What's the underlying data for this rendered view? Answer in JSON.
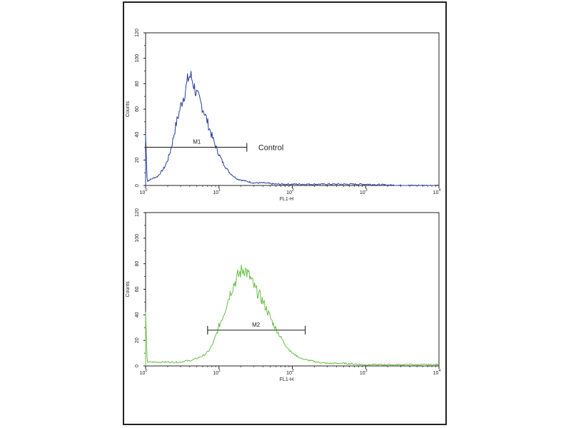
{
  "chart_data": [
    {
      "type": "line",
      "xscale": "log",
      "xlim": [
        1,
        10000
      ],
      "ylim": [
        0,
        120
      ],
      "xticks": [
        {
          "base": "10",
          "exp": "0"
        },
        {
          "base": "10",
          "exp": "1"
        },
        {
          "base": "10",
          "exp": "2"
        },
        {
          "base": "10",
          "exp": "3"
        },
        {
          "base": "10",
          "exp": "4"
        }
      ],
      "yticks": [
        "0",
        "20",
        "40",
        "60",
        "80",
        "100",
        "120"
      ],
      "xlabel": "FL1-H",
      "ylabel": "Counts",
      "color": "#2a3f9e",
      "marker": {
        "label": "M1",
        "x_start": 1,
        "x_end": 24,
        "y": 30
      },
      "annotation": "Control",
      "histogram": [
        [
          1.0,
          40
        ],
        [
          1.05,
          3
        ],
        [
          1.1,
          4
        ],
        [
          1.2,
          5
        ],
        [
          1.3,
          6
        ],
        [
          1.45,
          7
        ],
        [
          1.6,
          10
        ],
        [
          1.8,
          14
        ],
        [
          2.0,
          20
        ],
        [
          2.2,
          28
        ],
        [
          2.4,
          38
        ],
        [
          2.6,
          48
        ],
        [
          2.8,
          55
        ],
        [
          3.0,
          62
        ],
        [
          3.2,
          68
        ],
        [
          3.4,
          72
        ],
        [
          3.6,
          78
        ],
        [
          3.8,
          84
        ],
        [
          4.0,
          86
        ],
        [
          4.2,
          85
        ],
        [
          4.5,
          80
        ],
        [
          4.8,
          74
        ],
        [
          5.1,
          70
        ],
        [
          5.5,
          66
        ],
        [
          5.9,
          62
        ],
        [
          6.3,
          58
        ],
        [
          6.8,
          52
        ],
        [
          7.3,
          46
        ],
        [
          7.9,
          40
        ],
        [
          8.6,
          34
        ],
        [
          9.4,
          28
        ],
        [
          10.3,
          23
        ],
        [
          11.3,
          18
        ],
        [
          12.5,
          14
        ],
        [
          14,
          10
        ],
        [
          16,
          7
        ],
        [
          18,
          5
        ],
        [
          21,
          4
        ],
        [
          25,
          3
        ],
        [
          30,
          2
        ],
        [
          40,
          2
        ],
        [
          60,
          1
        ],
        [
          100,
          1
        ],
        [
          200,
          1
        ],
        [
          500,
          1
        ],
        [
          1000,
          1
        ],
        [
          3000,
          0
        ],
        [
          10000,
          0
        ]
      ]
    },
    {
      "type": "line",
      "xscale": "log",
      "xlim": [
        1,
        10000
      ],
      "ylim": [
        0,
        120
      ],
      "xticks": [
        {
          "base": "10",
          "exp": "0"
        },
        {
          "base": "10",
          "exp": "1"
        },
        {
          "base": "10",
          "exp": "2"
        },
        {
          "base": "10",
          "exp": "3"
        },
        {
          "base": "10",
          "exp": "4"
        }
      ],
      "yticks": [
        "0",
        "20",
        "40",
        "60",
        "80",
        "100",
        "120"
      ],
      "xlabel": "FL1-H",
      "ylabel": "Counts",
      "color": "#6cc04a",
      "marker": {
        "label": "M2",
        "x_start": 7,
        "x_end": 150,
        "y": 28
      },
      "annotation": "",
      "histogram": [
        [
          1.0,
          42
        ],
        [
          1.05,
          3
        ],
        [
          1.2,
          3
        ],
        [
          1.5,
          3
        ],
        [
          2.0,
          3
        ],
        [
          2.5,
          3
        ],
        [
          3.0,
          3
        ],
        [
          3.5,
          4
        ],
        [
          4.0,
          4
        ],
        [
          4.5,
          5
        ],
        [
          5.0,
          6
        ],
        [
          5.5,
          7
        ],
        [
          6.0,
          8
        ],
        [
          6.5,
          9
        ],
        [
          7.0,
          11
        ],
        [
          7.5,
          13
        ],
        [
          8.0,
          16
        ],
        [
          8.5,
          19
        ],
        [
          9.0,
          23
        ],
        [
          9.5,
          27
        ],
        [
          10,
          31
        ],
        [
          11,
          37
        ],
        [
          12,
          43
        ],
        [
          13,
          50
        ],
        [
          14,
          56
        ],
        [
          15,
          60
        ],
        [
          16,
          64
        ],
        [
          17,
          67
        ],
        [
          18,
          70
        ],
        [
          19,
          72
        ],
        [
          20,
          74
        ],
        [
          21,
          75
        ],
        [
          22,
          76
        ],
        [
          23,
          75
        ],
        [
          24,
          73
        ],
        [
          26,
          70
        ],
        [
          28,
          66
        ],
        [
          30,
          62
        ],
        [
          33,
          58
        ],
        [
          36,
          55
        ],
        [
          40,
          50
        ],
        [
          45,
          44
        ],
        [
          50,
          38
        ],
        [
          56,
          32
        ],
        [
          63,
          27
        ],
        [
          70,
          22
        ],
        [
          80,
          17
        ],
        [
          90,
          13
        ],
        [
          100,
          10
        ],
        [
          115,
          8
        ],
        [
          130,
          6
        ],
        [
          150,
          5
        ],
        [
          180,
          4
        ],
        [
          220,
          3
        ],
        [
          300,
          2
        ],
        [
          500,
          2
        ],
        [
          1000,
          1
        ],
        [
          3000,
          1
        ],
        [
          10000,
          1
        ]
      ]
    }
  ]
}
